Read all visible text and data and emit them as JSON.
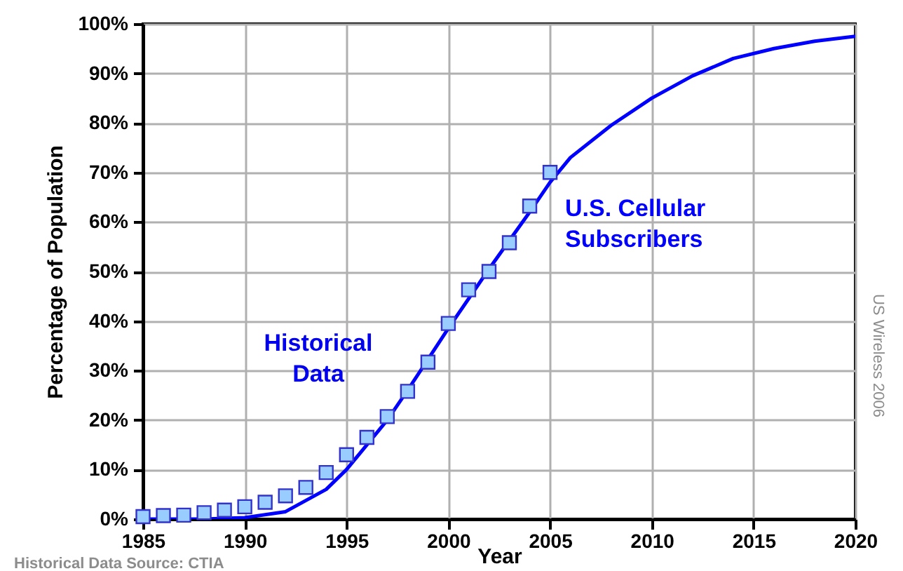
{
  "chart_data": {
    "type": "line",
    "xlabel": "Year",
    "ylabel": "Percentage of Population",
    "xlim": [
      1985,
      2020
    ],
    "xticks": [
      1985,
      1990,
      1995,
      2000,
      2005,
      2010,
      2015,
      2020
    ],
    "ylim": [
      0,
      100
    ],
    "yticks": [
      {
        "value": 0,
        "label": "0%"
      },
      {
        "value": 10,
        "label": "10%"
      },
      {
        "value": 20,
        "label": "20%"
      },
      {
        "value": 30,
        "label": "30%"
      },
      {
        "value": 40,
        "label": "40%"
      },
      {
        "value": 50,
        "label": "50%"
      },
      {
        "value": 60,
        "label": "60%"
      },
      {
        "value": 70,
        "label": "70%"
      },
      {
        "value": 80,
        "label": "80%"
      },
      {
        "value": 90,
        "label": "90%"
      },
      {
        "value": 100,
        "label": "100%"
      }
    ],
    "grid": true,
    "series": [
      {
        "name": "U.S. Cellular Subscribers",
        "color": "#0000ff",
        "x": [
          1985,
          1988,
          1990,
          1992,
          1994,
          1995,
          1996,
          1997,
          1998,
          2000,
          2002,
          2004,
          2005,
          2006,
          2008,
          2010,
          2012,
          2014,
          2016,
          2018,
          2020
        ],
        "values": [
          0,
          0,
          0.3,
          1.5,
          6,
          10,
          15,
          20,
          26,
          38.5,
          50.5,
          62,
          68,
          73,
          79.5,
          85,
          89.5,
          93,
          95,
          96.5,
          97.5
        ]
      },
      {
        "type": "scatter",
        "marker": "square",
        "color": "#99ccff",
        "x": [
          1985,
          1986,
          1987,
          1988,
          1989,
          1990,
          1991,
          1992,
          1993,
          1994,
          1995,
          1996,
          1997,
          1998,
          1999,
          2000,
          2001,
          2002,
          2003,
          2004,
          2005
        ],
        "values": [
          0.5,
          0.7,
          0.8,
          1.3,
          1.8,
          2.5,
          3.4,
          4.7,
          6.4,
          9.4,
          13,
          16.5,
          20.7,
          25.8,
          31.7,
          39.5,
          46.3,
          50,
          55.8,
          63.2,
          70
        ]
      }
    ],
    "annotations": [
      "Historical Data",
      "Historical Data Source: CTIA",
      "US Wireless 2006"
    ]
  }
}
